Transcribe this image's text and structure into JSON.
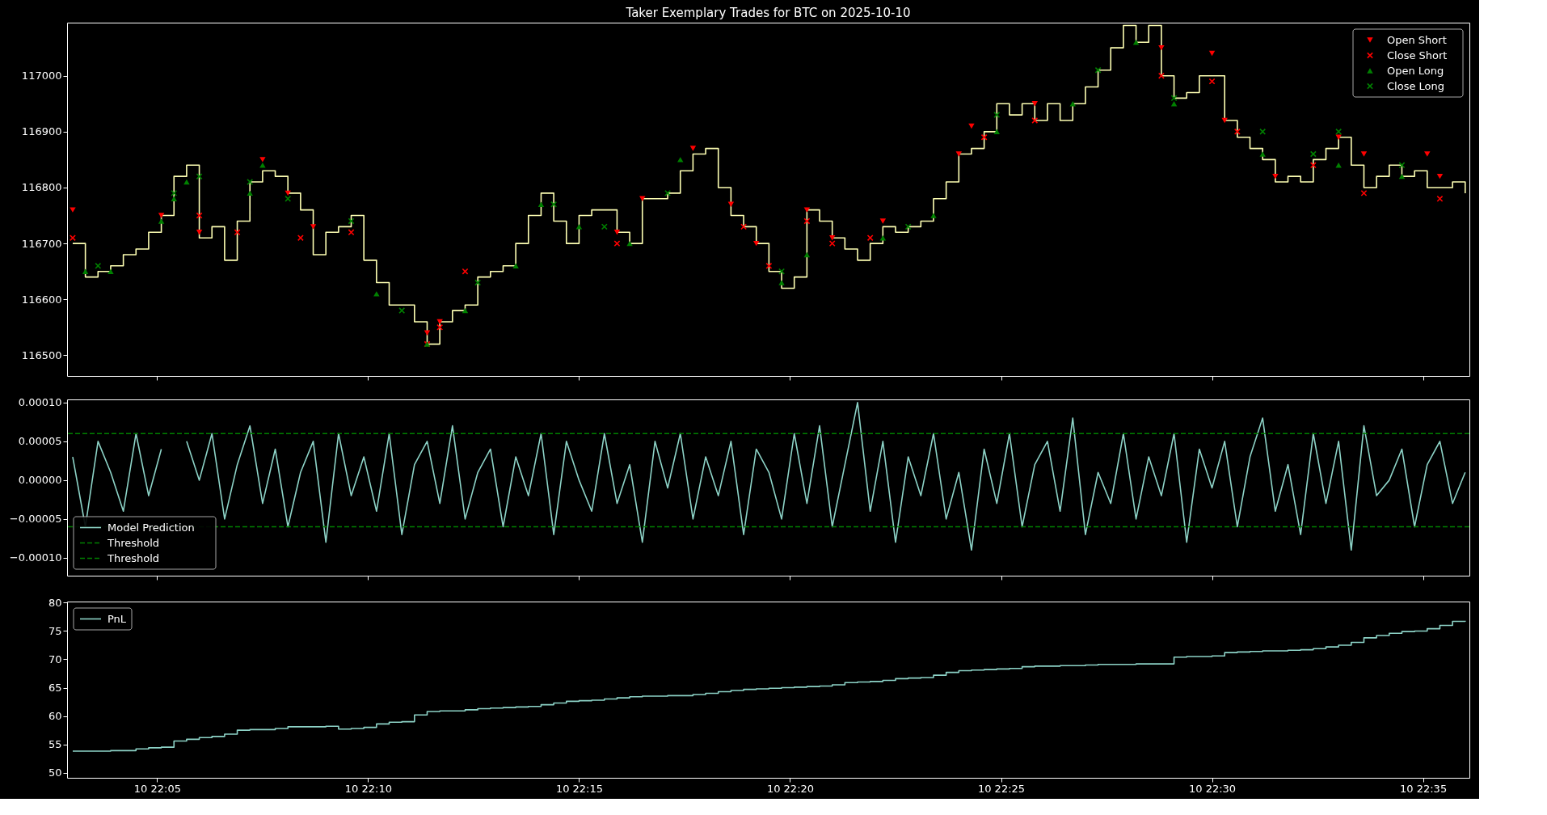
{
  "chart_data": [
    {
      "type": "step",
      "title": "Taker Exemplary Trades for BTC on 2025-10-10",
      "tick_labels": "y",
      "legend": "top right",
      "xlim": [
        "2025-10-10T22:02:52",
        "2025-10-10T22:36:06"
      ],
      "xticks": [
        "2025-10-10T22:05",
        "2025-10-10T22:10",
        "2025-10-10T22:15",
        "2025-10-10T22:20",
        "2025-10-10T22:25",
        "2025-10-10T22:30",
        "2025-10-10T22:35"
      ],
      "ylim": [
        116463,
        117095
      ],
      "yticks": [
        116500,
        116600,
        116700,
        116800,
        116900,
        117000
      ],
      "x": [
        "2025-10-10T22:03:00",
        "2025-10-10T22:03:18",
        "2025-10-10T22:03:36",
        "2025-10-10T22:03:54",
        "2025-10-10T22:04:12",
        "2025-10-10T22:04:30",
        "2025-10-10T22:04:48",
        "2025-10-10T22:05:06",
        "2025-10-10T22:05:24",
        "2025-10-10T22:05:42",
        "2025-10-10T22:06:00",
        "2025-10-10T22:06:18",
        "2025-10-10T22:06:36",
        "2025-10-10T22:06:54",
        "2025-10-10T22:07:12",
        "2025-10-10T22:07:30",
        "2025-10-10T22:07:48",
        "2025-10-10T22:08:06",
        "2025-10-10T22:08:24",
        "2025-10-10T22:08:42",
        "2025-10-10T22:09:00",
        "2025-10-10T22:09:18",
        "2025-10-10T22:09:36",
        "2025-10-10T22:09:54",
        "2025-10-10T22:10:12",
        "2025-10-10T22:10:30",
        "2025-10-10T22:10:48",
        "2025-10-10T22:11:06",
        "2025-10-10T22:11:24",
        "2025-10-10T22:11:42",
        "2025-10-10T22:12:00",
        "2025-10-10T22:12:18",
        "2025-10-10T22:12:36",
        "2025-10-10T22:12:54",
        "2025-10-10T22:13:12",
        "2025-10-10T22:13:30",
        "2025-10-10T22:13:48",
        "2025-10-10T22:14:06",
        "2025-10-10T22:14:24",
        "2025-10-10T22:14:42",
        "2025-10-10T22:15:00",
        "2025-10-10T22:15:18",
        "2025-10-10T22:15:36",
        "2025-10-10T22:15:54",
        "2025-10-10T22:16:12",
        "2025-10-10T22:16:30",
        "2025-10-10T22:16:48",
        "2025-10-10T22:17:06",
        "2025-10-10T22:17:24",
        "2025-10-10T22:17:42",
        "2025-10-10T22:18:00",
        "2025-10-10T22:18:18",
        "2025-10-10T22:18:36",
        "2025-10-10T22:18:54",
        "2025-10-10T22:19:12",
        "2025-10-10T22:19:30",
        "2025-10-10T22:19:48",
        "2025-10-10T22:20:06",
        "2025-10-10T22:20:24",
        "2025-10-10T22:20:42",
        "2025-10-10T22:21:00",
        "2025-10-10T22:21:18",
        "2025-10-10T22:21:36",
        "2025-10-10T22:21:54",
        "2025-10-10T22:22:12",
        "2025-10-10T22:22:30",
        "2025-10-10T22:22:48",
        "2025-10-10T22:23:06",
        "2025-10-10T22:23:24",
        "2025-10-10T22:23:42",
        "2025-10-10T22:24:00",
        "2025-10-10T22:24:18",
        "2025-10-10T22:24:36",
        "2025-10-10T22:24:54",
        "2025-10-10T22:25:12",
        "2025-10-10T22:25:30",
        "2025-10-10T22:25:48",
        "2025-10-10T22:26:06",
        "2025-10-10T22:26:24",
        "2025-10-10T22:26:42",
        "2025-10-10T22:27:00",
        "2025-10-10T22:27:18",
        "2025-10-10T22:27:36",
        "2025-10-10T22:27:54",
        "2025-10-10T22:28:12",
        "2025-10-10T22:28:30",
        "2025-10-10T22:28:48",
        "2025-10-10T22:29:06",
        "2025-10-10T22:29:24",
        "2025-10-10T22:29:42",
        "2025-10-10T22:30:00",
        "2025-10-10T22:30:18",
        "2025-10-10T22:30:36",
        "2025-10-10T22:30:54",
        "2025-10-10T22:31:12",
        "2025-10-10T22:31:30",
        "2025-10-10T22:31:48",
        "2025-10-10T22:32:06",
        "2025-10-10T22:32:24",
        "2025-10-10T22:32:42",
        "2025-10-10T22:33:00",
        "2025-10-10T22:33:18",
        "2025-10-10T22:33:36",
        "2025-10-10T22:33:54",
        "2025-10-10T22:34:12",
        "2025-10-10T22:34:30",
        "2025-10-10T22:34:48",
        "2025-10-10T22:35:06",
        "2025-10-10T22:35:24",
        "2025-10-10T22:35:42",
        "2025-10-10T22:36:00"
      ],
      "series": [
        {
          "color": "#feffb3",
          "values": [
            116700,
            116640,
            116650,
            116660,
            116680,
            116690,
            116720,
            116750,
            116820,
            116840,
            116710,
            116730,
            116670,
            116740,
            116810,
            116830,
            116820,
            116790,
            116760,
            116680,
            116720,
            116730,
            116750,
            116670,
            116630,
            116590,
            116590,
            116560,
            116520,
            116560,
            116580,
            116590,
            116640,
            116650,
            116660,
            116700,
            116750,
            116790,
            116740,
            116700,
            116750,
            116760,
            116760,
            116720,
            116700,
            116780,
            116780,
            116790,
            116830,
            116860,
            116870,
            116800,
            116750,
            116730,
            116700,
            116650,
            116620,
            116640,
            116760,
            116740,
            116710,
            116690,
            116670,
            116700,
            116730,
            116720,
            116730,
            116740,
            116780,
            116810,
            116860,
            116870,
            116900,
            116950,
            116930,
            116950,
            116920,
            116950,
            116920,
            116950,
            116980,
            117010,
            117050,
            117090,
            117060,
            117090,
            117000,
            116960,
            116970,
            117000,
            117000,
            116920,
            116890,
            116870,
            116850,
            116810,
            116820,
            116810,
            116850,
            116870,
            116890,
            116840,
            116800,
            116820,
            116840,
            116820,
            116830,
            116800,
            116800,
            116810,
            116790
          ]
        },
        {
          "name": "Open Short",
          "type": "scatter",
          "marker": "triangle-down",
          "color": "#ff0000",
          "x": [
            "2025-10-10T22:03:00",
            "2025-10-10T22:05:06",
            "2025-10-10T22:06:00",
            "2025-10-10T22:07:30",
            "2025-10-10T22:08:06",
            "2025-10-10T22:08:42",
            "2025-10-10T22:11:24",
            "2025-10-10T22:11:42",
            "2025-10-10T22:15:54",
            "2025-10-10T22:16:30",
            "2025-10-10T22:17:42",
            "2025-10-10T22:18:36",
            "2025-10-10T22:19:12",
            "2025-10-10T22:20:24",
            "2025-10-10T22:21:00",
            "2025-10-10T22:22:12",
            "2025-10-10T22:24:00",
            "2025-10-10T22:24:18",
            "2025-10-10T22:25:48",
            "2025-10-10T22:28:48",
            "2025-10-10T22:30:00",
            "2025-10-10T22:30:18",
            "2025-10-10T22:31:30",
            "2025-10-10T22:33:00",
            "2025-10-10T22:33:36",
            "2025-10-10T22:35:06",
            "2025-10-10T22:35:24"
          ],
          "values": [
            116760,
            116750,
            116720,
            116850,
            116790,
            116730,
            116540,
            116560,
            116720,
            116780,
            116870,
            116770,
            116700,
            116760,
            116710,
            116740,
            116860,
            116910,
            116950,
            117050,
            117040,
            116920,
            116820,
            116890,
            116860,
            116860,
            116820
          ]
        },
        {
          "name": "Close Short",
          "type": "scatter",
          "marker": "cross",
          "color": "#ff0000",
          "x": [
            "2025-10-10T22:03:00",
            "2025-10-10T22:06:00",
            "2025-10-10T22:06:54",
            "2025-10-10T22:08:24",
            "2025-10-10T22:09:36",
            "2025-10-10T22:11:24",
            "2025-10-10T22:11:42",
            "2025-10-10T22:12:18",
            "2025-10-10T22:15:54",
            "2025-10-10T22:18:54",
            "2025-10-10T22:19:30",
            "2025-10-10T22:20:24",
            "2025-10-10T22:21:00",
            "2025-10-10T22:21:54",
            "2025-10-10T22:24:36",
            "2025-10-10T22:25:48",
            "2025-10-10T22:28:48",
            "2025-10-10T22:30:00",
            "2025-10-10T22:30:36",
            "2025-10-10T22:32:24",
            "2025-10-10T22:33:36",
            "2025-10-10T22:35:24"
          ],
          "values": [
            116710,
            116750,
            116720,
            116710,
            116720,
            116520,
            116550,
            116650,
            116700,
            116730,
            116660,
            116740,
            116700,
            116710,
            116890,
            116920,
            117000,
            116990,
            116900,
            116840,
            116790,
            116780
          ]
        },
        {
          "name": "Open Long",
          "type": "scatter",
          "marker": "triangle",
          "color": "#008000",
          "x": [
            "2025-10-10T22:03:18",
            "2025-10-10T22:03:54",
            "2025-10-10T22:05:06",
            "2025-10-10T22:05:24",
            "2025-10-10T22:05:42",
            "2025-10-10T22:07:12",
            "2025-10-10T22:07:30",
            "2025-10-10T22:10:12",
            "2025-10-10T22:11:24",
            "2025-10-10T22:12:18",
            "2025-10-10T22:13:30",
            "2025-10-10T22:14:06",
            "2025-10-10T22:15:00",
            "2025-10-10T22:16:12",
            "2025-10-10T22:17:24",
            "2025-10-10T22:19:48",
            "2025-10-10T22:20:24",
            "2025-10-10T22:22:12",
            "2025-10-10T22:23:24",
            "2025-10-10T22:24:54",
            "2025-10-10T22:26:42",
            "2025-10-10T22:28:12",
            "2025-10-10T22:29:06",
            "2025-10-10T22:31:12",
            "2025-10-10T22:33:00",
            "2025-10-10T22:34:30"
          ],
          "values": [
            116650,
            116650,
            116740,
            116780,
            116810,
            116790,
            116840,
            116610,
            116520,
            116580,
            116660,
            116770,
            116730,
            116700,
            116850,
            116630,
            116680,
            116710,
            116750,
            116900,
            116950,
            117060,
            116950,
            116860,
            116840,
            116820
          ]
        },
        {
          "name": "Close Long",
          "type": "scatter",
          "marker": "cross",
          "color": "#008000",
          "x": [
            "2025-10-10T22:03:36",
            "2025-10-10T22:05:24",
            "2025-10-10T22:06:00",
            "2025-10-10T22:07:12",
            "2025-10-10T22:08:06",
            "2025-10-10T22:09:36",
            "2025-10-10T22:10:48",
            "2025-10-10T22:12:36",
            "2025-10-10T22:14:24",
            "2025-10-10T22:15:36",
            "2025-10-10T22:17:06",
            "2025-10-10T22:19:48",
            "2025-10-10T22:22:48",
            "2025-10-10T22:24:54",
            "2025-10-10T22:27:18",
            "2025-10-10T22:29:06",
            "2025-10-10T22:31:12",
            "2025-10-10T22:32:24",
            "2025-10-10T22:33:00",
            "2025-10-10T22:34:30"
          ],
          "values": [
            116660,
            116790,
            116820,
            116810,
            116780,
            116740,
            116580,
            116630,
            116770,
            116730,
            116790,
            116650,
            116730,
            116930,
            117010,
            116960,
            116900,
            116860,
            116900,
            116840
          ]
        }
      ]
    },
    {
      "type": "line",
      "tick_labels": "y",
      "legend": "bottom left",
      "xlim": [
        "2025-10-10T22:02:52",
        "2025-10-10T22:36:06"
      ],
      "xticks": [
        "2025-10-10T22:05",
        "2025-10-10T22:10",
        "2025-10-10T22:15",
        "2025-10-10T22:20",
        "2025-10-10T22:25",
        "2025-10-10T22:30",
        "2025-10-10T22:35"
      ],
      "ylim": [
        -0.000123,
        0.000104
      ],
      "yticks": [
        {
          "value": -0.0001,
          "label": "−0.00010"
        },
        {
          "value": -5e-05,
          "label": "−0.00005"
        },
        {
          "value": 0,
          "label": "0.00000"
        },
        {
          "value": 5e-05,
          "label": "0.00005"
        },
        {
          "value": 0.0001,
          "label": "0.00010"
        }
      ],
      "x": [
        "2025-10-10T22:03:00",
        "2025-10-10T22:03:18",
        "2025-10-10T22:03:36",
        "2025-10-10T22:03:54",
        "2025-10-10T22:04:12",
        "2025-10-10T22:04:30",
        "2025-10-10T22:04:48",
        "2025-10-10T22:05:06",
        "2025-10-10T22:05:24",
        "2025-10-10T22:05:42",
        "2025-10-10T22:06:00",
        "2025-10-10T22:06:18",
        "2025-10-10T22:06:36",
        "2025-10-10T22:06:54",
        "2025-10-10T22:07:12",
        "2025-10-10T22:07:30",
        "2025-10-10T22:07:48",
        "2025-10-10T22:08:06",
        "2025-10-10T22:08:24",
        "2025-10-10T22:08:42",
        "2025-10-10T22:09:00",
        "2025-10-10T22:09:18",
        "2025-10-10T22:09:36",
        "2025-10-10T22:09:54",
        "2025-10-10T22:10:12",
        "2025-10-10T22:10:30",
        "2025-10-10T22:10:48",
        "2025-10-10T22:11:06",
        "2025-10-10T22:11:24",
        "2025-10-10T22:11:42",
        "2025-10-10T22:12:00",
        "2025-10-10T22:12:18",
        "2025-10-10T22:12:36",
        "2025-10-10T22:12:54",
        "2025-10-10T22:13:12",
        "2025-10-10T22:13:30",
        "2025-10-10T22:13:48",
        "2025-10-10T22:14:06",
        "2025-10-10T22:14:24",
        "2025-10-10T22:14:42",
        "2025-10-10T22:15:00",
        "2025-10-10T22:15:18",
        "2025-10-10T22:15:36",
        "2025-10-10T22:15:54",
        "2025-10-10T22:16:12",
        "2025-10-10T22:16:30",
        "2025-10-10T22:16:48",
        "2025-10-10T22:17:06",
        "2025-10-10T22:17:24",
        "2025-10-10T22:17:42",
        "2025-10-10T22:18:00",
        "2025-10-10T22:18:18",
        "2025-10-10T22:18:36",
        "2025-10-10T22:18:54",
        "2025-10-10T22:19:12",
        "2025-10-10T22:19:30",
        "2025-10-10T22:19:48",
        "2025-10-10T22:20:06",
        "2025-10-10T22:20:24",
        "2025-10-10T22:20:42",
        "2025-10-10T22:21:00",
        "2025-10-10T22:21:18",
        "2025-10-10T22:21:36",
        "2025-10-10T22:21:54",
        "2025-10-10T22:22:12",
        "2025-10-10T22:22:30",
        "2025-10-10T22:22:48",
        "2025-10-10T22:23:06",
        "2025-10-10T22:23:24",
        "2025-10-10T22:23:42",
        "2025-10-10T22:24:00",
        "2025-10-10T22:24:18",
        "2025-10-10T22:24:36",
        "2025-10-10T22:24:54",
        "2025-10-10T22:25:12",
        "2025-10-10T22:25:30",
        "2025-10-10T22:25:48",
        "2025-10-10T22:26:06",
        "2025-10-10T22:26:24",
        "2025-10-10T22:26:42",
        "2025-10-10T22:27:00",
        "2025-10-10T22:27:18",
        "2025-10-10T22:27:36",
        "2025-10-10T22:27:54",
        "2025-10-10T22:28:12",
        "2025-10-10T22:28:30",
        "2025-10-10T22:28:48",
        "2025-10-10T22:29:06",
        "2025-10-10T22:29:24",
        "2025-10-10T22:29:42",
        "2025-10-10T22:30:00",
        "2025-10-10T22:30:18",
        "2025-10-10T22:30:36",
        "2025-10-10T22:30:54",
        "2025-10-10T22:31:12",
        "2025-10-10T22:31:30",
        "2025-10-10T22:31:48",
        "2025-10-10T22:32:06",
        "2025-10-10T22:32:24",
        "2025-10-10T22:32:42",
        "2025-10-10T22:33:00",
        "2025-10-10T22:33:18",
        "2025-10-10T22:33:36",
        "2025-10-10T22:33:54",
        "2025-10-10T22:34:12",
        "2025-10-10T22:34:30",
        "2025-10-10T22:34:48",
        "2025-10-10T22:35:06",
        "2025-10-10T22:35:24",
        "2025-10-10T22:35:42",
        "2025-10-10T22:36:00"
      ],
      "series": [
        {
          "name": "Model Prediction",
          "color": "#8dd3c7",
          "values": [
            3e-05,
            -6e-05,
            5e-05,
            1e-05,
            -4e-05,
            6e-05,
            -2e-05,
            4e-05,
            null,
            5e-05,
            0,
            6e-05,
            -5e-05,
            2e-05,
            7e-05,
            -3e-05,
            4e-05,
            -6e-05,
            1e-05,
            5e-05,
            -8e-05,
            6e-05,
            -2e-05,
            3e-05,
            -4e-05,
            6e-05,
            -7e-05,
            2e-05,
            5e-05,
            -3e-05,
            7e-05,
            -5e-05,
            1e-05,
            4e-05,
            -6e-05,
            3e-05,
            -2e-05,
            6e-05,
            -7e-05,
            5e-05,
            0,
            -4e-05,
            6e-05,
            -3e-05,
            2e-05,
            -8e-05,
            5e-05,
            -1e-05,
            6e-05,
            -5e-05,
            3e-05,
            -2e-05,
            5e-05,
            -7e-05,
            4e-05,
            1e-05,
            -5e-05,
            6e-05,
            -3e-05,
            7e-05,
            -6e-05,
            2e-05,
            0.0001,
            -4e-05,
            5e-05,
            -8e-05,
            3e-05,
            -2e-05,
            6e-05,
            -5e-05,
            1e-05,
            -9e-05,
            4e-05,
            -3e-05,
            6e-05,
            -6e-05,
            2e-05,
            5e-05,
            -4e-05,
            8e-05,
            -7e-05,
            1e-05,
            -3e-05,
            6e-05,
            -5e-05,
            3e-05,
            -2e-05,
            6e-05,
            -8e-05,
            4e-05,
            -1e-05,
            5e-05,
            -6e-05,
            3e-05,
            8e-05,
            -4e-05,
            2e-05,
            -7e-05,
            6e-05,
            -3e-05,
            5e-05,
            -9e-05,
            7e-05,
            -2e-05,
            0,
            4e-05,
            -6e-05,
            2e-05,
            5e-05,
            -3e-05,
            1e-05
          ]
        }
      ],
      "ref_lines": [
        {
          "axis": "y",
          "value": 6e-05,
          "label": "Threshold",
          "color": "#008000",
          "line_style": "dashed"
        },
        {
          "axis": "y",
          "value": -6e-05,
          "label": "Threshold",
          "color": "#008000",
          "line_style": "dashed"
        }
      ]
    },
    {
      "type": "step",
      "legend": "top left",
      "xlim": [
        "2025-10-10T22:02:52",
        "2025-10-10T22:36:06"
      ],
      "xticks": [
        {
          "value": "2025-10-10T22:05",
          "label": "10 22:05"
        },
        {
          "value": "2025-10-10T22:10",
          "label": "10 22:10"
        },
        {
          "value": "2025-10-10T22:15",
          "label": "10 22:15"
        },
        {
          "value": "2025-10-10T22:20",
          "label": "10 22:20"
        },
        {
          "value": "2025-10-10T22:25",
          "label": "10 22:25"
        },
        {
          "value": "2025-10-10T22:30",
          "label": "10 22:30"
        },
        {
          "value": "2025-10-10T22:35",
          "label": "10 22:35"
        }
      ],
      "ylim": [
        49.1,
        80.2
      ],
      "yticks": [
        50,
        55,
        60,
        65,
        70,
        75,
        80
      ],
      "x": [
        "2025-10-10T22:03:00",
        "2025-10-10T22:03:18",
        "2025-10-10T22:03:36",
        "2025-10-10T22:03:54",
        "2025-10-10T22:04:12",
        "2025-10-10T22:04:30",
        "2025-10-10T22:04:48",
        "2025-10-10T22:05:06",
        "2025-10-10T22:05:24",
        "2025-10-10T22:05:42",
        "2025-10-10T22:06:00",
        "2025-10-10T22:06:18",
        "2025-10-10T22:06:36",
        "2025-10-10T22:06:54",
        "2025-10-10T22:07:12",
        "2025-10-10T22:07:30",
        "2025-10-10T22:07:48",
        "2025-10-10T22:08:06",
        "2025-10-10T22:08:24",
        "2025-10-10T22:08:42",
        "2025-10-10T22:09:00",
        "2025-10-10T22:09:18",
        "2025-10-10T22:09:36",
        "2025-10-10T22:09:54",
        "2025-10-10T22:10:12",
        "2025-10-10T22:10:30",
        "2025-10-10T22:10:48",
        "2025-10-10T22:11:06",
        "2025-10-10T22:11:24",
        "2025-10-10T22:11:42",
        "2025-10-10T22:12:00",
        "2025-10-10T22:12:18",
        "2025-10-10T22:12:36",
        "2025-10-10T22:12:54",
        "2025-10-10T22:13:12",
        "2025-10-10T22:13:30",
        "2025-10-10T22:13:48",
        "2025-10-10T22:14:06",
        "2025-10-10T22:14:24",
        "2025-10-10T22:14:42",
        "2025-10-10T22:15:00",
        "2025-10-10T22:15:18",
        "2025-10-10T22:15:36",
        "2025-10-10T22:15:54",
        "2025-10-10T22:16:12",
        "2025-10-10T22:16:30",
        "2025-10-10T22:16:48",
        "2025-10-10T22:17:06",
        "2025-10-10T22:17:24",
        "2025-10-10T22:17:42",
        "2025-10-10T22:18:00",
        "2025-10-10T22:18:18",
        "2025-10-10T22:18:36",
        "2025-10-10T22:18:54",
        "2025-10-10T22:19:12",
        "2025-10-10T22:19:30",
        "2025-10-10T22:19:48",
        "2025-10-10T22:20:06",
        "2025-10-10T22:20:24",
        "2025-10-10T22:20:42",
        "2025-10-10T22:21:00",
        "2025-10-10T22:21:18",
        "2025-10-10T22:21:36",
        "2025-10-10T22:21:54",
        "2025-10-10T22:22:12",
        "2025-10-10T22:22:30",
        "2025-10-10T22:22:48",
        "2025-10-10T22:23:06",
        "2025-10-10T22:23:24",
        "2025-10-10T22:23:42",
        "2025-10-10T22:24:00",
        "2025-10-10T22:24:18",
        "2025-10-10T22:24:36",
        "2025-10-10T22:24:54",
        "2025-10-10T22:25:12",
        "2025-10-10T22:25:30",
        "2025-10-10T22:25:48",
        "2025-10-10T22:26:06",
        "2025-10-10T22:26:24",
        "2025-10-10T22:26:42",
        "2025-10-10T22:27:00",
        "2025-10-10T22:27:18",
        "2025-10-10T22:27:36",
        "2025-10-10T22:27:54",
        "2025-10-10T22:28:12",
        "2025-10-10T22:28:30",
        "2025-10-10T22:28:48",
        "2025-10-10T22:29:06",
        "2025-10-10T22:29:24",
        "2025-10-10T22:29:42",
        "2025-10-10T22:30:00",
        "2025-10-10T22:30:18",
        "2025-10-10T22:30:36",
        "2025-10-10T22:30:54",
        "2025-10-10T22:31:12",
        "2025-10-10T22:31:30",
        "2025-10-10T22:31:48",
        "2025-10-10T22:32:06",
        "2025-10-10T22:32:24",
        "2025-10-10T22:32:42",
        "2025-10-10T22:33:00",
        "2025-10-10T22:33:18",
        "2025-10-10T22:33:36",
        "2025-10-10T22:33:54",
        "2025-10-10T22:34:12",
        "2025-10-10T22:34:30",
        "2025-10-10T22:34:48",
        "2025-10-10T22:35:06",
        "2025-10-10T22:35:24",
        "2025-10-10T22:35:42",
        "2025-10-10T22:36:00"
      ],
      "series": [
        {
          "name": "PnL",
          "color": "#8dd3c7",
          "values": [
            53.8,
            53.8,
            53.8,
            53.9,
            53.9,
            54.2,
            54.4,
            54.5,
            55.6,
            55.9,
            56.2,
            56.4,
            56.8,
            57.5,
            57.6,
            57.6,
            57.8,
            58.1,
            58.1,
            58.1,
            58.2,
            57.7,
            57.8,
            58.0,
            58.6,
            58.9,
            59.0,
            60.2,
            60.8,
            60.9,
            60.9,
            61.1,
            61.3,
            61.4,
            61.5,
            61.6,
            61.7,
            62.0,
            62.3,
            62.6,
            62.7,
            62.8,
            63.0,
            63.2,
            63.4,
            63.5,
            63.5,
            63.6,
            63.6,
            63.8,
            64.0,
            64.3,
            64.5,
            64.7,
            64.8,
            64.9,
            65.0,
            65.1,
            65.2,
            65.3,
            65.5,
            65.9,
            66.0,
            66.1,
            66.3,
            66.6,
            66.7,
            66.8,
            67.2,
            67.7,
            68.0,
            68.1,
            68.2,
            68.3,
            68.4,
            68.7,
            68.8,
            68.8,
            68.9,
            68.9,
            69.0,
            69.1,
            69.1,
            69.1,
            69.2,
            69.2,
            69.2,
            70.4,
            70.5,
            70.5,
            70.6,
            71.2,
            71.3,
            71.4,
            71.5,
            71.5,
            71.6,
            71.7,
            71.9,
            72.2,
            72.5,
            73.0,
            73.8,
            74.2,
            74.6,
            74.9,
            75.0,
            75.4,
            76.0,
            76.7,
            76.8
          ]
        }
      ]
    }
  ]
}
